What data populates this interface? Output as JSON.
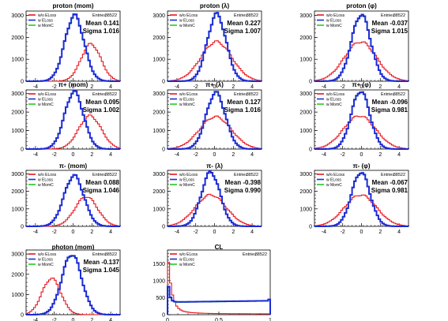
{
  "meta": {
    "legend": [
      "w/o ELoss",
      "w ELoss",
      "w MomC"
    ],
    "entries_label": "Entries",
    "colors": {
      "w/o ELoss": "#e8141c",
      "w ELoss": "#1c2bd4",
      "w MomC": "#22cc22"
    }
  },
  "chart_data": [
    {
      "id": "proton-mom",
      "type": "histogram",
      "title": "proton (mom)",
      "entries": "38522",
      "mean": "Mean 0.141",
      "sigma": "Sigma 1.016",
      "xlim": [
        -5,
        5
      ],
      "ylim": [
        0,
        3200
      ],
      "xticks": [
        -4,
        -2,
        0,
        2,
        4
      ],
      "yticks": [
        0,
        1000,
        2000,
        3000
      ],
      "series": [
        {
          "name": "w/o ELoss",
          "mu": 1.9,
          "sd": 1.05,
          "peak": 1700
        },
        {
          "name": "w ELoss",
          "mu": 0.14,
          "sd": 1.02,
          "peak": 3000
        },
        {
          "name": "w MomC",
          "mu": 0.14,
          "sd": 1.02,
          "peak": 2960
        }
      ]
    },
    {
      "id": "proton-lambda",
      "type": "histogram",
      "title": "proton (λ)",
      "entries": "38522",
      "mean": "Mean 0.227",
      "sigma": "Sigma 1.007",
      "xlim": [
        -5,
        5
      ],
      "ylim": [
        0,
        3200
      ],
      "xticks": [
        -4,
        -2,
        0,
        2,
        4
      ],
      "yticks": [
        0,
        1000,
        2000,
        3000
      ],
      "series": [
        {
          "name": "w/o ELoss",
          "mu": 0.2,
          "sd": 1.65,
          "peak": 1800
        },
        {
          "name": "w ELoss",
          "mu": 0.23,
          "sd": 1.0,
          "peak": 3050
        },
        {
          "name": "w MomC",
          "mu": 0.23,
          "sd": 1.0,
          "peak": 3020
        }
      ]
    },
    {
      "id": "proton-phi",
      "type": "histogram",
      "title": "proton (φ)",
      "entries": "38522",
      "mean": "Mean -0.037",
      "sigma": "Sigma 1.015",
      "xlim": [
        -5,
        5
      ],
      "ylim": [
        0,
        3200
      ],
      "xticks": [
        -4,
        -2,
        0,
        2,
        4
      ],
      "yticks": [
        0,
        1000,
        2000,
        3000
      ],
      "series": [
        {
          "name": "w/o ELoss",
          "mu": -0.1,
          "sd": 1.7,
          "peak": 1800
        },
        {
          "name": "w ELoss",
          "mu": -0.04,
          "sd": 1.02,
          "peak": 3050
        },
        {
          "name": "w MomC",
          "mu": -0.04,
          "sd": 1.02,
          "peak": 3020
        }
      ]
    },
    {
      "id": "piplus-mom",
      "type": "histogram",
      "title": "π+ (mom)",
      "entries": "38522",
      "mean": "Mean 0.095",
      "sigma": "Sigma 1.002",
      "xlim": [
        -5,
        5
      ],
      "ylim": [
        0,
        3200
      ],
      "xticks": [
        -4,
        -2,
        0,
        2,
        4
      ],
      "yticks": [
        0,
        1000,
        2000,
        3000
      ],
      "series": [
        {
          "name": "w/o ELoss",
          "mu": 1.8,
          "sd": 1.2,
          "peak": 1800
        },
        {
          "name": "w ELoss",
          "mu": 0.1,
          "sd": 1.0,
          "peak": 3100
        },
        {
          "name": "w MomC",
          "mu": 0.1,
          "sd": 1.0,
          "peak": 3080
        }
      ]
    },
    {
      "id": "piplus-lambda",
      "type": "histogram",
      "title": "π+ (λ)",
      "entries": "38522",
      "mean": "Mean 0.127",
      "sigma": "Sigma 1.016",
      "xlim": [
        -5,
        5
      ],
      "ylim": [
        0,
        3200
      ],
      "xticks": [
        -4,
        -2,
        0,
        2,
        4
      ],
      "yticks": [
        0,
        1000,
        2000,
        3000
      ],
      "series": [
        {
          "name": "w/o ELoss",
          "mu": 0.1,
          "sd": 1.7,
          "peak": 1750
        },
        {
          "name": "w ELoss",
          "mu": 0.13,
          "sd": 1.02,
          "peak": 3050
        },
        {
          "name": "w MomC",
          "mu": 0.13,
          "sd": 1.02,
          "peak": 3020
        }
      ]
    },
    {
      "id": "piplus-phi",
      "type": "histogram",
      "title": "π+ (φ)",
      "entries": "38522",
      "mean": "Mean -0.096",
      "sigma": "Sigma 0.981",
      "xlim": [
        -5,
        5
      ],
      "ylim": [
        0,
        3200
      ],
      "xticks": [
        -4,
        -2,
        0,
        2,
        4
      ],
      "yticks": [
        0,
        1000,
        2000,
        3000
      ],
      "series": [
        {
          "name": "w/o ELoss",
          "mu": -0.2,
          "sd": 1.7,
          "peak": 1800
        },
        {
          "name": "w ELoss",
          "mu": -0.1,
          "sd": 0.98,
          "peak": 3150
        },
        {
          "name": "w MomC",
          "mu": -0.1,
          "sd": 0.98,
          "peak": 3120
        }
      ]
    },
    {
      "id": "piminus-mom",
      "type": "histogram",
      "title": "π- (mom)",
      "entries": "38522",
      "mean": "Mean 0.088",
      "sigma": "Sigma 1.046",
      "xlim": [
        -5,
        5
      ],
      "ylim": [
        0,
        3200
      ],
      "xticks": [
        -4,
        -2,
        0,
        2,
        4
      ],
      "yticks": [
        0,
        1000,
        2000,
        3000
      ],
      "series": [
        {
          "name": "w/o ELoss",
          "mu": 1.4,
          "sd": 1.2,
          "peak": 1700
        },
        {
          "name": "w ELoss",
          "mu": 0.09,
          "sd": 1.05,
          "peak": 2900
        },
        {
          "name": "w MomC",
          "mu": 0.09,
          "sd": 1.05,
          "peak": 2870
        }
      ]
    },
    {
      "id": "piminus-lambda",
      "type": "histogram",
      "title": "π- (λ)",
      "entries": "38522",
      "mean": "Mean -0.398",
      "sigma": "Sigma 0.990",
      "xlim": [
        -5,
        5
      ],
      "ylim": [
        0,
        3200
      ],
      "xticks": [
        -4,
        -2,
        0,
        2,
        4
      ],
      "yticks": [
        0,
        1000,
        2000,
        3000
      ],
      "series": [
        {
          "name": "w/o ELoss",
          "mu": -0.4,
          "sd": 1.65,
          "peak": 1800
        },
        {
          "name": "w ELoss",
          "mu": -0.4,
          "sd": 0.99,
          "peak": 3100
        },
        {
          "name": "w MomC",
          "mu": -0.4,
          "sd": 0.99,
          "peak": 3070
        }
      ]
    },
    {
      "id": "piminus-phi",
      "type": "histogram",
      "title": "π- (φ)",
      "entries": "38522",
      "mean": "Mean -0.067",
      "sigma": "Sigma 0.981",
      "xlim": [
        -5,
        5
      ],
      "ylim": [
        0,
        3200
      ],
      "xticks": [
        -4,
        -2,
        0,
        2,
        4
      ],
      "yticks": [
        0,
        1000,
        2000,
        3000
      ],
      "series": [
        {
          "name": "w/o ELoss",
          "mu": -0.1,
          "sd": 1.7,
          "peak": 1800
        },
        {
          "name": "w ELoss",
          "mu": -0.07,
          "sd": 0.98,
          "peak": 3100
        },
        {
          "name": "w MomC",
          "mu": -0.07,
          "sd": 0.98,
          "peak": 3070
        }
      ]
    },
    {
      "id": "photon-mom",
      "type": "histogram",
      "title": "photon (mom)",
      "entries": "38522",
      "mean": "Mean -0.137",
      "sigma": "Sigma 1.045",
      "xlim": [
        -5,
        5
      ],
      "ylim": [
        0,
        3200
      ],
      "xticks": [
        -4,
        -2,
        0,
        2,
        4
      ],
      "yticks": [
        0,
        1000,
        2000,
        3000
      ],
      "series": [
        {
          "name": "w/o ELoss",
          "mu": -2.3,
          "sd": 1.0,
          "peak": 1800
        },
        {
          "name": "w ELoss",
          "mu": -0.14,
          "sd": 1.05,
          "peak": 3000
        },
        {
          "name": "w MomC",
          "mu": -0.14,
          "sd": 1.05,
          "peak": 2970
        }
      ]
    },
    {
      "id": "cl",
      "type": "histogram",
      "title": "CL",
      "entries": "38522",
      "mean": "",
      "sigma": "",
      "xlim": [
        0,
        1
      ],
      "ylim": [
        0,
        1900
      ],
      "xticks": [
        0,
        0.5,
        1
      ],
      "yticks": [
        0,
        500,
        1000,
        1500
      ],
      "series": [
        {
          "name": "w/o ELoss",
          "shape": "cl-decay",
          "spike": 1850,
          "floor": 25
        },
        {
          "name": "w ELoss",
          "shape": "cl-flat",
          "spike": 1200,
          "floor": 370
        },
        {
          "name": "w MomC",
          "shape": "cl-flat",
          "spike": 1150,
          "floor": 360
        }
      ]
    }
  ]
}
